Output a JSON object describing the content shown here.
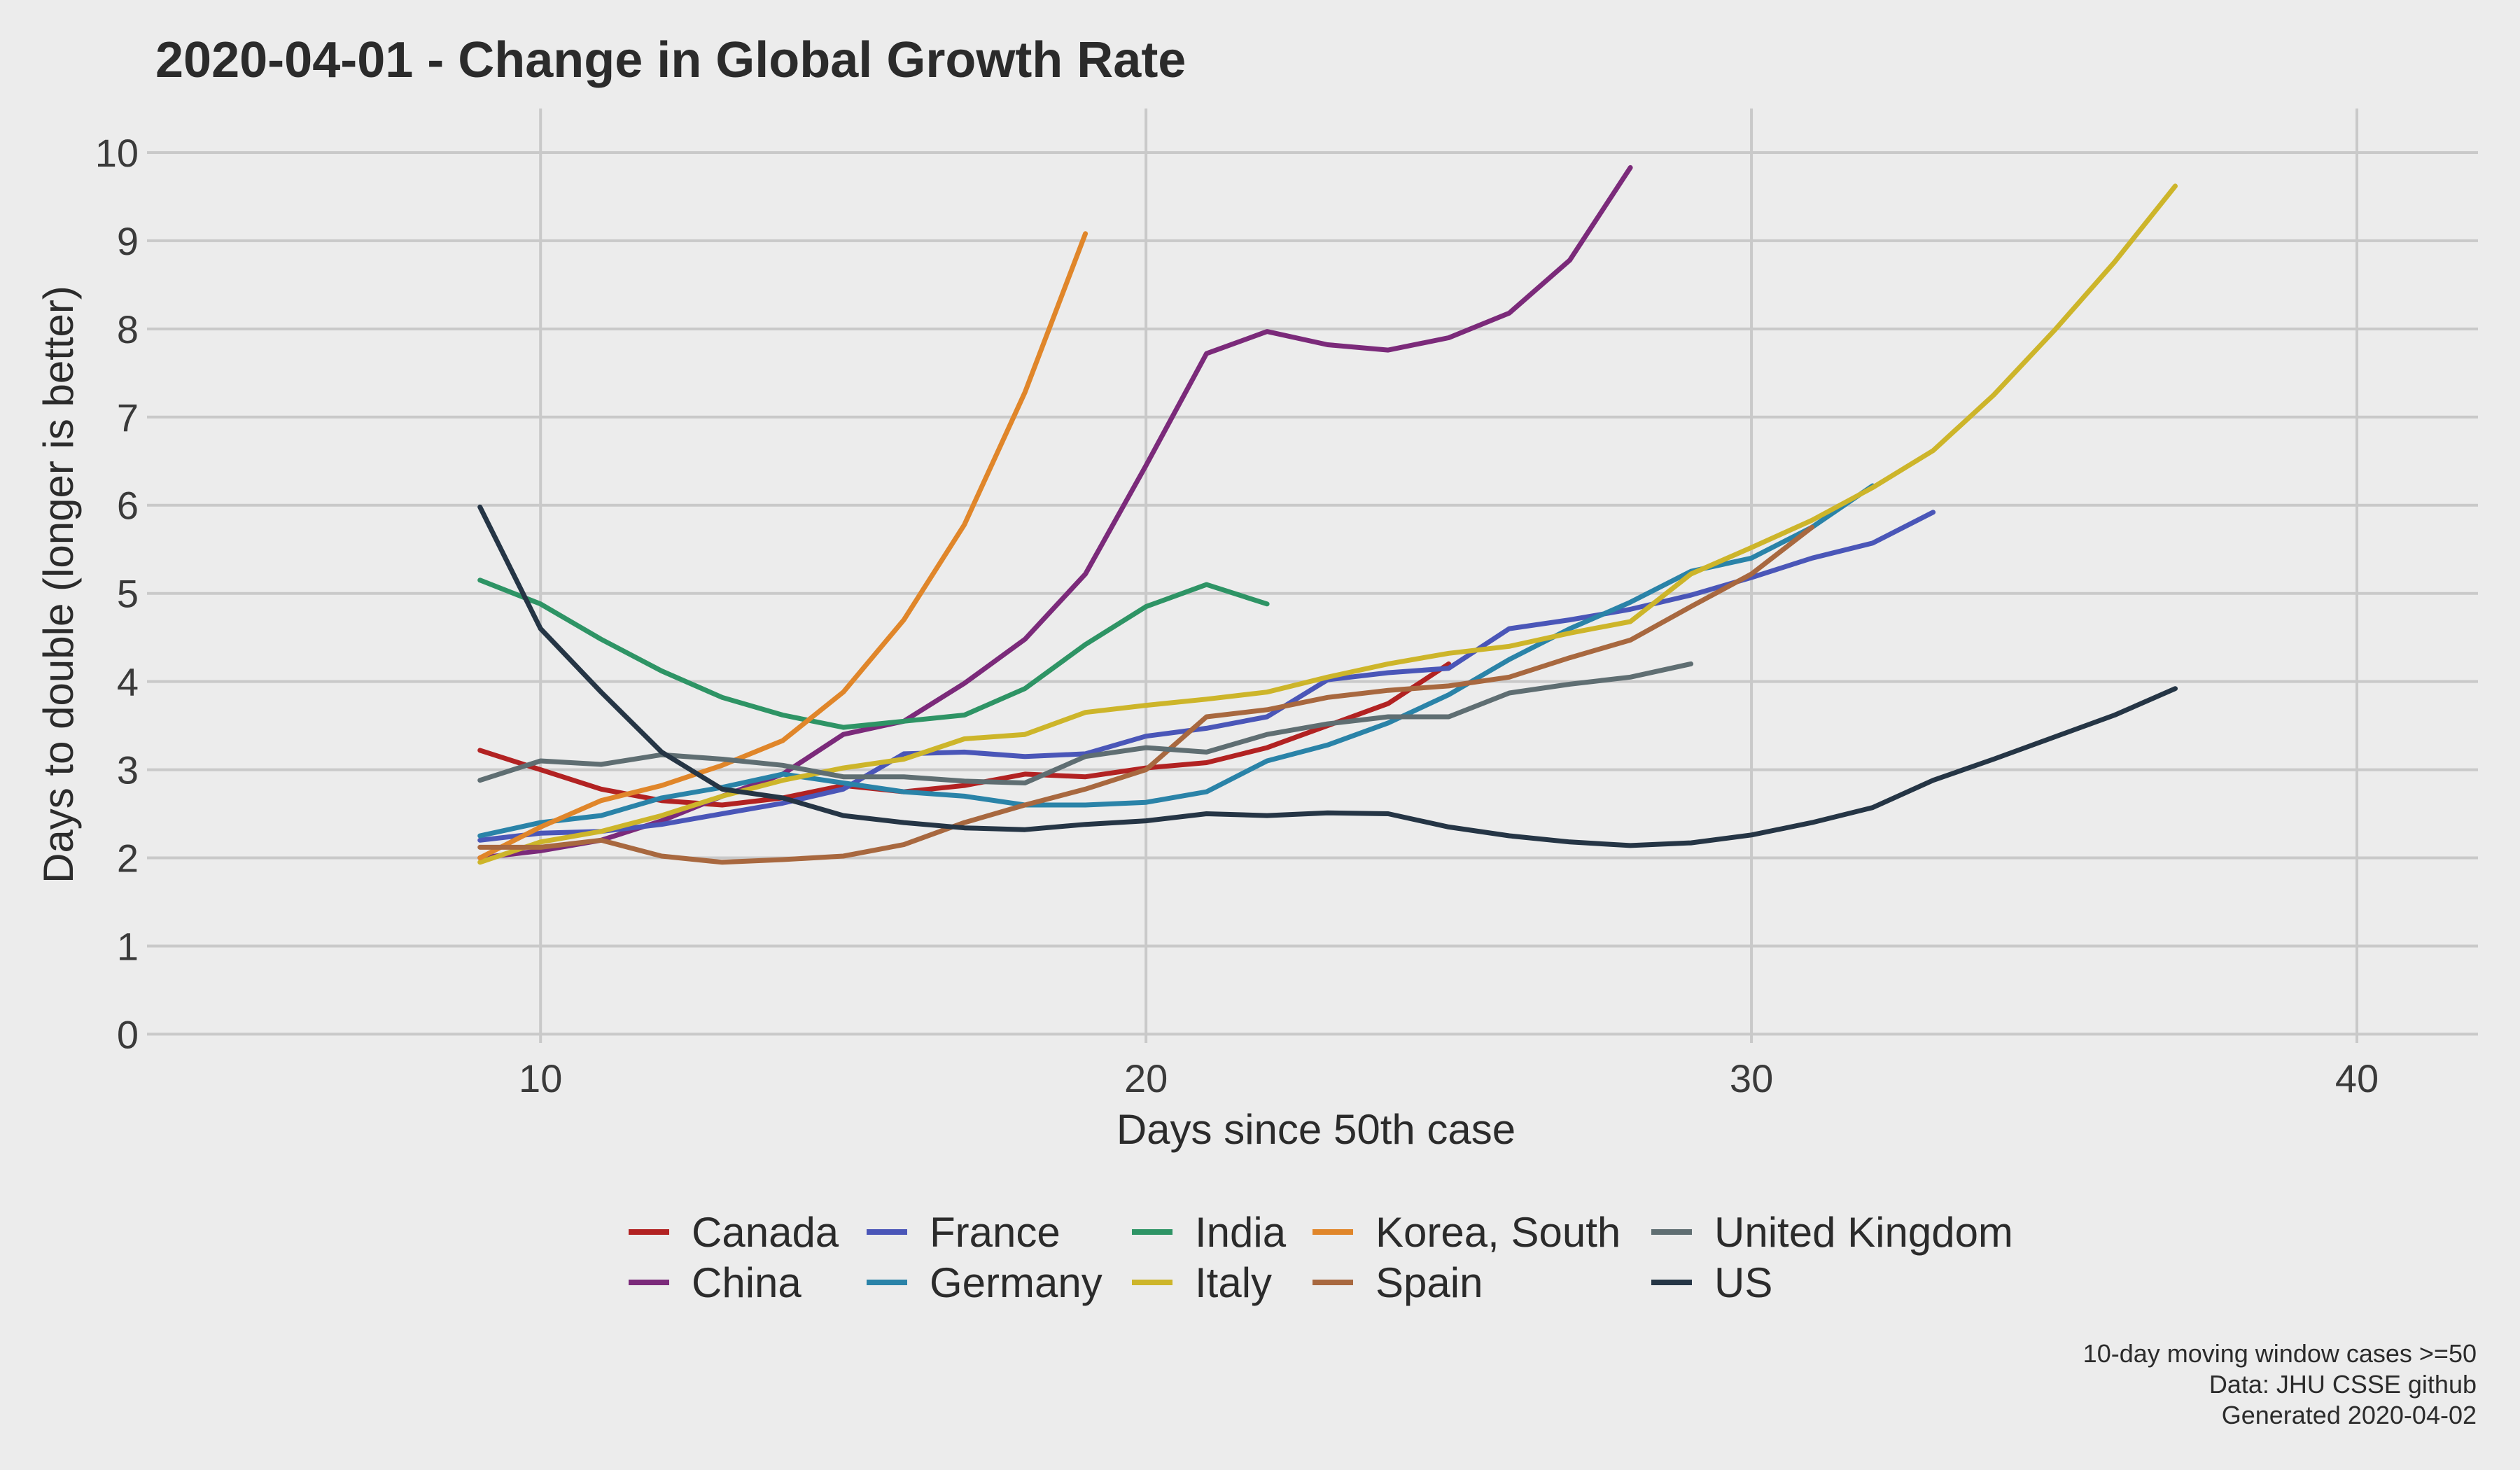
{
  "chart_data": {
    "type": "line",
    "title": "2020-04-01  - Change in Global Growth Rate",
    "xlabel": "Days since 50th case",
    "ylabel": "Days to double (longer is better)",
    "xlim": [
      3.5,
      42
    ],
    "ylim": [
      -0.1,
      10.5
    ],
    "x_ticks": [
      10,
      20,
      30,
      40
    ],
    "y_ticks": [
      0,
      1,
      2,
      3,
      4,
      5,
      6,
      7,
      8,
      9,
      10
    ],
    "grid": true,
    "legend_position": "bottom",
    "series": [
      {
        "name": "Canada",
        "color": "#b22222",
        "x": [
          9,
          10,
          11,
          12,
          13,
          14,
          15,
          16,
          17,
          18,
          19,
          20,
          21,
          22,
          23,
          24,
          25
        ],
        "y": [
          3.22,
          3.0,
          2.78,
          2.65,
          2.6,
          2.68,
          2.82,
          2.75,
          2.82,
          2.95,
          2.92,
          3.02,
          3.08,
          3.25,
          3.5,
          3.75,
          4.2
        ]
      },
      {
        "name": "China",
        "color": "#7b2a7a",
        "x": [
          9,
          10,
          11,
          12,
          13,
          14,
          15,
          16,
          17,
          18,
          19,
          20,
          21,
          22,
          23,
          24,
          25,
          26,
          27,
          28
        ],
        "y": [
          2.0,
          2.08,
          2.2,
          2.42,
          2.7,
          2.95,
          3.4,
          3.55,
          3.98,
          4.48,
          5.22,
          6.45,
          7.72,
          7.97,
          7.82,
          7.76,
          7.9,
          8.18,
          8.78,
          9.83
        ]
      },
      {
        "name": "France",
        "color": "#4a56b8",
        "x": [
          9,
          10,
          11,
          12,
          13,
          14,
          15,
          16,
          17,
          18,
          19,
          20,
          21,
          22,
          23,
          24,
          25,
          26,
          27,
          28,
          29,
          30,
          31,
          32,
          33
        ],
        "y": [
          2.2,
          2.28,
          2.3,
          2.38,
          2.5,
          2.62,
          2.78,
          3.18,
          3.2,
          3.15,
          3.18,
          3.38,
          3.47,
          3.6,
          4.02,
          4.1,
          4.15,
          4.6,
          4.7,
          4.82,
          4.98,
          5.18,
          5.4,
          5.57,
          5.92
        ]
      },
      {
        "name": "Germany",
        "color": "#2a83a8",
        "x": [
          9,
          10,
          11,
          12,
          13,
          14,
          15,
          16,
          17,
          18,
          19,
          20,
          21,
          22,
          23,
          24,
          25,
          26,
          27,
          28,
          29,
          30,
          31,
          32
        ],
        "y": [
          2.25,
          2.4,
          2.48,
          2.68,
          2.8,
          2.95,
          2.85,
          2.75,
          2.7,
          2.6,
          2.6,
          2.63,
          2.75,
          3.1,
          3.28,
          3.53,
          3.85,
          4.25,
          4.6,
          4.9,
          5.25,
          5.4,
          5.75,
          6.22
        ]
      },
      {
        "name": "India",
        "color": "#2e9465",
        "x": [
          9,
          10,
          11,
          12,
          13,
          14,
          15,
          16,
          17,
          18,
          19,
          20,
          21,
          22
        ],
        "y": [
          5.15,
          4.88,
          4.48,
          4.12,
          3.82,
          3.62,
          3.48,
          3.55,
          3.62,
          3.92,
          4.42,
          4.85,
          5.1,
          4.88
        ]
      },
      {
        "name": "Italy",
        "color": "#cdb52a",
        "x": [
          9,
          10,
          11,
          12,
          13,
          14,
          15,
          16,
          17,
          18,
          19,
          20,
          21,
          22,
          23,
          24,
          25,
          26,
          27,
          28,
          29,
          30,
          31,
          32,
          33,
          34,
          35,
          36,
          37
        ],
        "y": [
          1.95,
          2.18,
          2.3,
          2.48,
          2.7,
          2.88,
          3.02,
          3.12,
          3.35,
          3.4,
          3.65,
          3.73,
          3.8,
          3.88,
          4.05,
          4.2,
          4.32,
          4.4,
          4.55,
          4.68,
          5.22,
          5.52,
          5.83,
          6.2,
          6.62,
          7.25,
          7.98,
          8.76,
          9.62
        ]
      },
      {
        "name": "Korea, South",
        "color": "#e0862a",
        "x": [
          9,
          10,
          11,
          12,
          13,
          14,
          15,
          16,
          17,
          18,
          19
        ],
        "y": [
          2.0,
          2.35,
          2.65,
          2.82,
          3.05,
          3.33,
          3.88,
          4.7,
          5.78,
          7.28,
          9.08
        ]
      },
      {
        "name": "Spain",
        "color": "#a8683f",
        "x": [
          9,
          10,
          11,
          12,
          13,
          14,
          15,
          16,
          17,
          18,
          19,
          20,
          21,
          22,
          23,
          24,
          25,
          26,
          27,
          28,
          29,
          30,
          31
        ],
        "y": [
          2.12,
          2.12,
          2.2,
          2.02,
          1.95,
          1.98,
          2.02,
          2.15,
          2.4,
          2.6,
          2.78,
          3.0,
          3.6,
          3.68,
          3.82,
          3.9,
          3.95,
          4.05,
          4.27,
          4.47,
          4.85,
          5.22,
          5.75
        ]
      },
      {
        "name": "United Kingdom",
        "color": "#5f6e72",
        "x": [
          9,
          10,
          11,
          12,
          13,
          14,
          15,
          16,
          17,
          18,
          19,
          20,
          21,
          22,
          23,
          24,
          25,
          26,
          27,
          28,
          29
        ],
        "y": [
          2.88,
          3.1,
          3.06,
          3.17,
          3.12,
          3.05,
          2.92,
          2.92,
          2.87,
          2.85,
          3.15,
          3.25,
          3.2,
          3.4,
          3.52,
          3.6,
          3.6,
          3.87,
          3.97,
          4.05,
          4.2
        ]
      },
      {
        "name": "US",
        "color": "#253545",
        "x": [
          9,
          10,
          11,
          12,
          13,
          14,
          15,
          16,
          17,
          18,
          19,
          20,
          21,
          22,
          23,
          24,
          25,
          26,
          27,
          28,
          29,
          30,
          31,
          32,
          33,
          34,
          35,
          36,
          37
        ],
        "y": [
          5.98,
          4.6,
          3.88,
          3.2,
          2.78,
          2.68,
          2.48,
          2.4,
          2.34,
          2.32,
          2.38,
          2.42,
          2.5,
          2.48,
          2.51,
          2.5,
          2.35,
          2.25,
          2.18,
          2.14,
          2.17,
          2.26,
          2.4,
          2.57,
          2.88,
          3.12,
          3.37,
          3.62,
          3.92
        ]
      }
    ],
    "caption": [
      "10-day moving window cases >=50",
      "Data: JHU CSSE github",
      "Generated 2020-04-02"
    ]
  }
}
